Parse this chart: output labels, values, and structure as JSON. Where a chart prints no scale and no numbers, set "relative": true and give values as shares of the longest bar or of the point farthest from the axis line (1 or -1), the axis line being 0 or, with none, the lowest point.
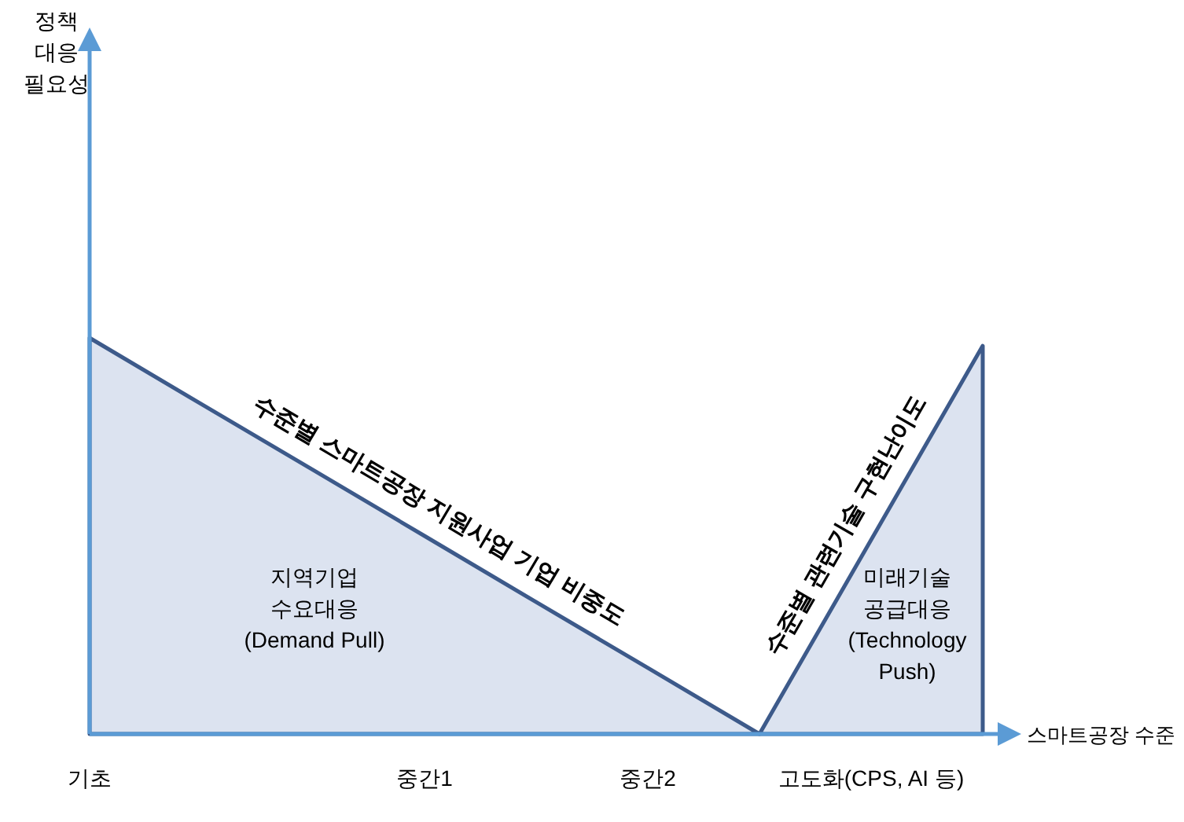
{
  "chart_data": {
    "type": "area",
    "relative": true,
    "xlabel": "스마트공장 수준",
    "categories": [
      "기초",
      null,
      null,
      "중간1",
      null,
      "중간2",
      null,
      "고도화(CPS, AI 등)",
      null
    ],
    "series": [
      {
        "name": "수준별 스마트공장 지원사업 기업 비중도",
        "color": "#dce3f0",
        "values": [
          1,
          0.833,
          0.667,
          0.5,
          0.333,
          0.167,
          0,
          null,
          null
        ]
      },
      {
        "name": "수준별 관련기술 구현난이도",
        "color": "#dce3f0",
        "values": [
          null,
          null,
          null,
          null,
          null,
          null,
          0,
          0.49,
          0.98
        ]
      }
    ],
    "annotations": [
      "정책\n대응\n필요성",
      "지역기업\n수요대응\n(Demand Pull)",
      "미래기술\n공급대응\n(Technology\nPush)"
    ],
    "grid": false,
    "legend": false
  }
}
